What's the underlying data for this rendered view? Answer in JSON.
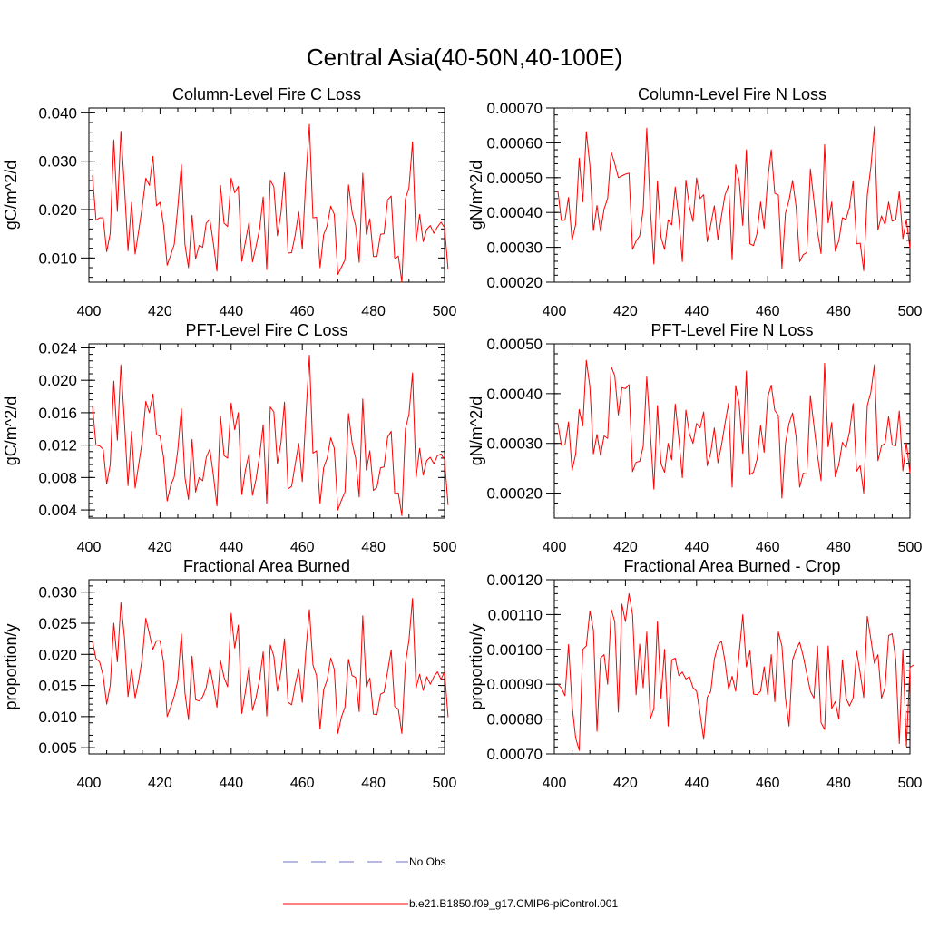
{
  "main_title": "Central Asia(40-50N,40-100E)",
  "colors": {
    "series": "#ff0000",
    "obs": "#7070c8",
    "axis": "#000000"
  },
  "legend": [
    {
      "label": "No Obs",
      "style": "dashed",
      "color": "#7070c8"
    },
    {
      "label": "b.e21.B1850.f09_g17.CMIP6-piControl.001",
      "style": "solid",
      "color": "#ff0000"
    }
  ],
  "chart_data": [
    {
      "type": "line",
      "title": "Column-Level Fire C Loss",
      "xlabel": "",
      "ylabel": "gC/m^2/d",
      "xlim": [
        400,
        500
      ],
      "ylim": [
        0.005,
        0.041
      ],
      "xticks": [
        400,
        420,
        440,
        460,
        480,
        500
      ],
      "yticks": [
        0.01,
        0.02,
        0.03,
        0.04
      ],
      "ytick_labels": [
        "0.010",
        "0.020",
        "0.030",
        "0.040"
      ],
      "x_start": 401,
      "series": [
        {
          "name": "b.e21.B1850.f09_g17.CMIP6-piControl.001",
          "values": [
            0.0271,
            0.0178,
            0.0183,
            0.0183,
            0.0113,
            0.0151,
            0.0344,
            0.0196,
            0.0362,
            0.0246,
            0.0115,
            0.0215,
            0.0108,
            0.0156,
            0.0206,
            0.0265,
            0.025,
            0.031,
            0.0208,
            0.0215,
            0.0168,
            0.0085,
            0.0106,
            0.0128,
            0.0205,
            0.0293,
            0.0128,
            0.008,
            0.0188,
            0.0098,
            0.0126,
            0.0122,
            0.0172,
            0.018,
            0.013,
            0.0073,
            0.025,
            0.0172,
            0.0165,
            0.0265,
            0.0235,
            0.0248,
            0.0093,
            0.0133,
            0.0173,
            0.0092,
            0.0124,
            0.016,
            0.0226,
            0.0076,
            0.0261,
            0.0247,
            0.0146,
            0.0193,
            0.0276,
            0.011,
            0.0111,
            0.0147,
            0.0195,
            0.0119,
            0.0262,
            0.0376,
            0.0183,
            0.0184,
            0.008,
            0.0148,
            0.0167,
            0.0207,
            0.019,
            0.0066,
            0.0081,
            0.0096,
            0.0251,
            0.0195,
            0.0167,
            0.0091,
            0.0275,
            0.0149,
            0.0181,
            0.0103,
            0.0103,
            0.0149,
            0.015,
            0.022,
            0.0228,
            0.0098,
            0.0104,
            0.005,
            0.0222,
            0.0245,
            0.034,
            0.0133,
            0.019,
            0.0134,
            0.0159,
            0.0167,
            0.0151,
            0.0164,
            0.0174,
            0.0163,
            0.0076
          ]
        }
      ]
    },
    {
      "type": "line",
      "title": "Column-Level Fire N Loss",
      "xlabel": "",
      "ylabel": "gN/m^2/d",
      "xlim": [
        400,
        500
      ],
      "ylim": [
        0.0002,
        0.0007
      ],
      "xticks": [
        400,
        420,
        440,
        460,
        480,
        500
      ],
      "yticks": [
        0.0002,
        0.0003,
        0.0004,
        0.0005,
        0.0006,
        0.0007
      ],
      "ytick_labels": [
        "0.00020",
        "0.00030",
        "0.00040",
        "0.00050",
        "0.00060",
        "0.00070"
      ],
      "x_start": 401,
      "series": [
        {
          "name": "b.e21.B1850.f09_g17.CMIP6-piControl.001",
          "values": [
            0.000462,
            0.000377,
            0.000378,
            0.000443,
            0.00032,
            0.000366,
            0.000556,
            0.00043,
            0.000632,
            0.000535,
            0.000348,
            0.00042,
            0.000346,
            0.00041,
            0.00044,
            0.000574,
            0.00054,
            0.0005,
            0.000505,
            0.00051,
            0.000513,
            0.000294,
            0.000318,
            0.000333,
            0.00041,
            0.000642,
            0.000412,
            0.000252,
            0.00049,
            0.000329,
            0.000294,
            0.000379,
            0.000364,
            0.000473,
            0.000384,
            0.000259,
            0.000493,
            0.000416,
            0.000374,
            0.000499,
            0.00044,
            0.000451,
            0.000316,
            0.000366,
            0.000419,
            0.000322,
            0.00039,
            0.00045,
            0.000478,
            0.000264,
            0.000537,
            0.00049,
            0.000363,
            0.00058,
            0.00031,
            0.000305,
            0.00034,
            0.00043,
            0.000355,
            0.000495,
            0.00058,
            0.000455,
            0.00045,
            0.00024,
            0.000398,
            0.000435,
            0.000492,
            0.000415,
            0.000259,
            0.000279,
            0.000285,
            0.000525,
            0.000434,
            0.000345,
            0.000282,
            0.000595,
            0.00037,
            0.00043,
            0.000289,
            0.000319,
            0.000385,
            0.00038,
            0.000415,
            0.00049,
            0.00031,
            0.000312,
            0.000233,
            0.00045,
            0.00053,
            0.000646,
            0.00035,
            0.00039,
            0.000365,
            0.00043,
            0.000375,
            0.00038,
            0.00046,
            0.000325,
            0.000379,
            0.000297
          ]
        }
      ]
    },
    {
      "type": "line",
      "title": "PFT-Level Fire C Loss",
      "xlabel": "",
      "ylabel": "gC/m^2/d",
      "xlim": [
        400,
        500
      ],
      "ylim": [
        0.003,
        0.0245
      ],
      "xticks": [
        400,
        420,
        440,
        460,
        480,
        500
      ],
      "yticks": [
        0.004,
        0.008,
        0.012,
        0.016,
        0.02,
        0.024
      ],
      "ytick_labels": [
        "0.004",
        "0.008",
        "0.012",
        "0.016",
        "0.020",
        "0.024"
      ],
      "x_start": 401,
      "series": [
        {
          "name": "b.e21.B1850.f09_g17.CMIP6-piControl.001",
          "values": [
            0.0168,
            0.012,
            0.0119,
            0.0115,
            0.0072,
            0.0096,
            0.0199,
            0.0126,
            0.0219,
            0.0148,
            0.007,
            0.0137,
            0.0067,
            0.0096,
            0.0125,
            0.0174,
            0.016,
            0.0183,
            0.0133,
            0.0131,
            0.0105,
            0.0051,
            0.007,
            0.0081,
            0.0114,
            0.0165,
            0.008,
            0.0053,
            0.0127,
            0.0062,
            0.008,
            0.0076,
            0.0105,
            0.0115,
            0.0083,
            0.0045,
            0.0156,
            0.0107,
            0.0104,
            0.0172,
            0.0139,
            0.016,
            0.0059,
            0.0089,
            0.0109,
            0.0058,
            0.0078,
            0.0107,
            0.0145,
            0.0048,
            0.0167,
            0.0161,
            0.0097,
            0.0123,
            0.0173,
            0.0066,
            0.0069,
            0.0096,
            0.0122,
            0.0075,
            0.0156,
            0.0231,
            0.011,
            0.0113,
            0.0048,
            0.0092,
            0.0104,
            0.0129,
            0.0116,
            0.004,
            0.0052,
            0.0062,
            0.0159,
            0.0123,
            0.0104,
            0.0056,
            0.0177,
            0.0089,
            0.0113,
            0.0064,
            0.0068,
            0.0092,
            0.0093,
            0.013,
            0.0137,
            0.006,
            0.0061,
            0.0033,
            0.014,
            0.0158,
            0.0209,
            0.008,
            0.0116,
            0.0083,
            0.0101,
            0.0105,
            0.0097,
            0.0107,
            0.0109,
            0.0102,
            0.0046
          ]
        }
      ]
    },
    {
      "type": "line",
      "title": "PFT-Level Fire N Loss",
      "xlabel": "",
      "ylabel": "gN/m^2/d",
      "xlim": [
        400,
        500
      ],
      "ylim": [
        0.00015,
        0.0005
      ],
      "xticks": [
        400,
        420,
        440,
        460,
        480,
        500
      ],
      "yticks": [
        0.0002,
        0.0003,
        0.0004,
        0.0005
      ],
      "ytick_labels": [
        "0.00020",
        "0.00030",
        "0.00040",
        "0.00050"
      ],
      "x_start": 401,
      "series": [
        {
          "name": "b.e21.B1850.f09_g17.CMIP6-piControl.001",
          "values": [
            0.00034,
            0.000296,
            0.000297,
            0.000343,
            0.000246,
            0.000278,
            0.000368,
            0.000335,
            0.000467,
            0.000414,
            0.000279,
            0.000318,
            0.000276,
            0.000315,
            0.00031,
            0.000454,
            0.000436,
            0.000357,
            0.000412,
            0.00041,
            0.000418,
            0.000243,
            0.000262,
            0.000264,
            0.000294,
            0.000434,
            0.000321,
            0.000208,
            0.000376,
            0.000259,
            0.000242,
            0.0003,
            0.000267,
            0.000379,
            0.000311,
            0.000231,
            0.000367,
            0.000319,
            0.0003,
            0.00034,
            0.000331,
            0.000363,
            0.000255,
            0.000282,
            0.000331,
            0.000261,
            0.000296,
            0.00034,
            0.000381,
            0.000212,
            0.000416,
            0.000379,
            0.00028,
            0.000445,
            0.000237,
            0.000242,
            0.000268,
            0.000336,
            0.000282,
            0.000393,
            0.000417,
            0.000366,
            0.000356,
            0.00019,
            0.0003,
            0.00034,
            0.000361,
            0.000312,
            0.000212,
            0.00024,
            0.000238,
            0.000396,
            0.000336,
            0.000276,
            0.000225,
            0.000461,
            0.000293,
            0.000342,
            0.000233,
            0.000257,
            0.000302,
            0.000291,
            0.000323,
            0.00038,
            0.000244,
            0.000255,
            0.0002,
            0.000376,
            0.000403,
            0.000458,
            0.000265,
            0.000295,
            0.0003,
            0.000354,
            0.000297,
            0.000295,
            0.000365,
            0.000245,
            0.000301,
            0.00024
          ]
        }
      ]
    },
    {
      "type": "line",
      "title": "Fractional Area Burned",
      "xlabel": "",
      "ylabel": "proportion/y",
      "xlim": [
        400,
        500
      ],
      "ylim": [
        0.004,
        0.032
      ],
      "xticks": [
        400,
        420,
        440,
        460,
        480,
        500
      ],
      "yticks": [
        0.005,
        0.01,
        0.015,
        0.02,
        0.025,
        0.03
      ],
      "ytick_labels": [
        "0.005",
        "0.010",
        "0.015",
        "0.020",
        "0.025",
        "0.030"
      ],
      "x_start": 401,
      "series": [
        {
          "name": "b.e21.B1850.f09_g17.CMIP6-piControl.001",
          "values": [
            0.0221,
            0.0193,
            0.0188,
            0.0166,
            0.012,
            0.015,
            0.025,
            0.0188,
            0.0283,
            0.0227,
            0.0132,
            0.0177,
            0.013,
            0.0158,
            0.0194,
            0.0258,
            0.0233,
            0.0208,
            0.0222,
            0.0222,
            0.0187,
            0.01,
            0.0115,
            0.0133,
            0.0158,
            0.0233,
            0.0138,
            0.0095,
            0.0197,
            0.0127,
            0.0125,
            0.0132,
            0.0147,
            0.018,
            0.015,
            0.0115,
            0.019,
            0.0163,
            0.0148,
            0.0266,
            0.021,
            0.0247,
            0.0105,
            0.014,
            0.018,
            0.011,
            0.0131,
            0.016,
            0.0204,
            0.0101,
            0.0215,
            0.0197,
            0.0141,
            0.0172,
            0.0225,
            0.0123,
            0.0119,
            0.0151,
            0.0177,
            0.0123,
            0.0205,
            0.0272,
            0.0183,
            0.0166,
            0.008,
            0.0143,
            0.0159,
            0.0194,
            0.0176,
            0.0073,
            0.0099,
            0.0115,
            0.0192,
            0.0166,
            0.0163,
            0.0108,
            0.0262,
            0.0148,
            0.0162,
            0.0104,
            0.0103,
            0.0136,
            0.0139,
            0.0173,
            0.0207,
            0.0116,
            0.0112,
            0.0073,
            0.0185,
            0.0223,
            0.029,
            0.0146,
            0.0168,
            0.0142,
            0.0164,
            0.0152,
            0.0164,
            0.0172,
            0.016,
            0.0172,
            0.0099
          ]
        }
      ]
    },
    {
      "type": "line",
      "title": "Fractional Area Burned - Crop",
      "xlabel": "",
      "ylabel": "proportion/y",
      "xlim": [
        400,
        500
      ],
      "ylim": [
        0.0007,
        0.0012
      ],
      "xticks": [
        400,
        420,
        440,
        460,
        480,
        500
      ],
      "yticks": [
        0.0007,
        0.0008,
        0.0009,
        0.001,
        0.0011,
        0.0012
      ],
      "ytick_labels": [
        "0.00070",
        "0.00080",
        "0.00090",
        "0.00100",
        "0.00110",
        "0.00120"
      ],
      "x_start": 401,
      "series": [
        {
          "name": "b.e21.B1850.f09_g17.CMIP6-piControl.001",
          "values": [
            0.0009,
            0.000889,
            0.000867,
            0.001014,
            0.000838,
            0.000746,
            0.00071,
            0.001,
            0.00101,
            0.00111,
            0.001055,
            0.000765,
            0.000975,
            0.000985,
            0.0009,
            0.001115,
            0.00108,
            0.00082,
            0.00113,
            0.00108,
            0.00116,
            0.0011,
            0.00087,
            0.001015,
            0.00089,
            0.00105,
            0.0008,
            0.00083,
            0.00108,
            0.00086,
            0.001,
            0.00078,
            0.00097,
            0.000975,
            0.000925,
            0.000935,
            0.000915,
            0.000922,
            0.00089,
            0.00088,
            0.000815,
            0.000742,
            0.000862,
            0.00088,
            0.000972,
            0.001012,
            0.001024,
            0.000965,
            0.000885,
            0.000923,
            0.00088,
            0.000992,
            0.0011,
            0.00095,
            0.000996,
            0.000872,
            0.00087,
            0.00088,
            0.00095,
            0.00087,
            0.000985,
            0.00085,
            0.00105,
            0.00101,
            0.00086,
            0.00078,
            0.00097,
            0.001,
            0.00102,
            0.00098,
            0.00093,
            0.00088,
            0.00086,
            0.00101,
            0.00079,
            0.00077,
            0.00101,
            0.00083,
            0.00085,
            0.0008,
            0.00097,
            0.00086,
            0.000838,
            0.00086,
            0.000995,
            0.000932,
            0.000862,
            0.001095,
            0.00103,
            0.00096,
            0.000985,
            0.00086,
            0.00089,
            0.00104,
            0.001045,
            0.00097,
            0.00073,
            0.001,
            0.000722,
            0.000948,
            0.000955
          ]
        }
      ]
    }
  ]
}
